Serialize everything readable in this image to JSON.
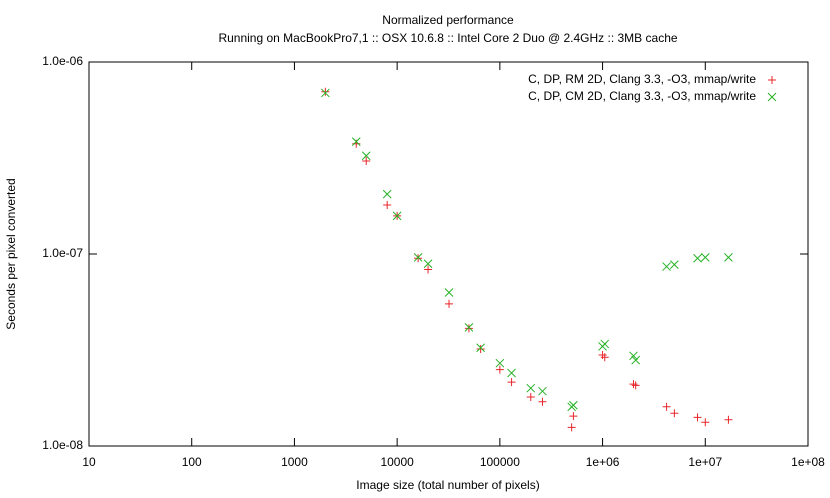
{
  "chart_data": {
    "type": "scatter",
    "title": "Normalized performance",
    "subtitle": "Running on MacBookPro7,1 :: OSX 10.6.8 :: Intel Core 2 Duo @ 2.4GHz :: 3MB cache",
    "x_label": "Image size (total number of pixels)",
    "y_label": "Seconds per pixel converted",
    "xscale": "log",
    "yscale": "log",
    "xlim": [
      10,
      100000000
    ],
    "ylim": [
      1e-08,
      1e-06
    ],
    "xticks": [
      10,
      100,
      1000,
      10000,
      100000,
      {
        "value": 1000000,
        "label": "1e+06"
      },
      {
        "value": 10000000,
        "label": "1e+07"
      },
      {
        "value": 100000000,
        "label": "1e+08"
      }
    ],
    "yticks": [
      {
        "value": 1e-08,
        "label": "1.0e-08"
      },
      {
        "value": 1e-07,
        "label": "1.0e-07"
      },
      {
        "value": 1e-06,
        "label": "1.0e-06"
      }
    ],
    "legend": "top-right",
    "x": [
      2000,
      4000,
      5000,
      8000,
      10000,
      16000,
      20000,
      32000,
      50000,
      65000,
      100000,
      130000,
      200000,
      260000,
      500000,
      520000,
      1000000,
      1050000,
      2000000,
      2100000,
      4200000,
      5000000,
      8400000,
      10000000,
      16800000
    ],
    "series": [
      {
        "name": "C, DP, RM 2D, Clang 3.3, -O3, mmap/write",
        "color": "#e8262a",
        "marker": "plus",
        "values": [
          7e-07,
          3.75e-07,
          3.05e-07,
          1.8e-07,
          1.58e-07,
          9.5e-08,
          8.3e-08,
          5.5e-08,
          4.1e-08,
          3.2e-08,
          2.5e-08,
          2.15e-08,
          1.8e-08,
          1.7e-08,
          1.25e-08,
          1.43e-08,
          2.98e-08,
          2.9e-08,
          2.1e-08,
          2.07e-08,
          1.6e-08,
          1.48e-08,
          1.41e-08,
          1.33e-08,
          1.37e-08
        ]
      },
      {
        "name": "C, DP, CM 2D, Clang 3.3, -O3, mmap/write",
        "color": "#26b226",
        "marker": "cross",
        "values": [
          6.9e-07,
          3.85e-07,
          3.25e-07,
          2.05e-07,
          1.58e-07,
          9.6e-08,
          8.9e-08,
          6.3e-08,
          4.15e-08,
          3.25e-08,
          2.7e-08,
          2.4e-08,
          2e-08,
          1.93e-08,
          1.6e-08,
          1.63e-08,
          3.3e-08,
          3.4e-08,
          2.95e-08,
          2.8e-08,
          8.6e-08,
          8.8e-08,
          9.5e-08,
          9.6e-08,
          9.6e-08
        ]
      }
    ]
  }
}
